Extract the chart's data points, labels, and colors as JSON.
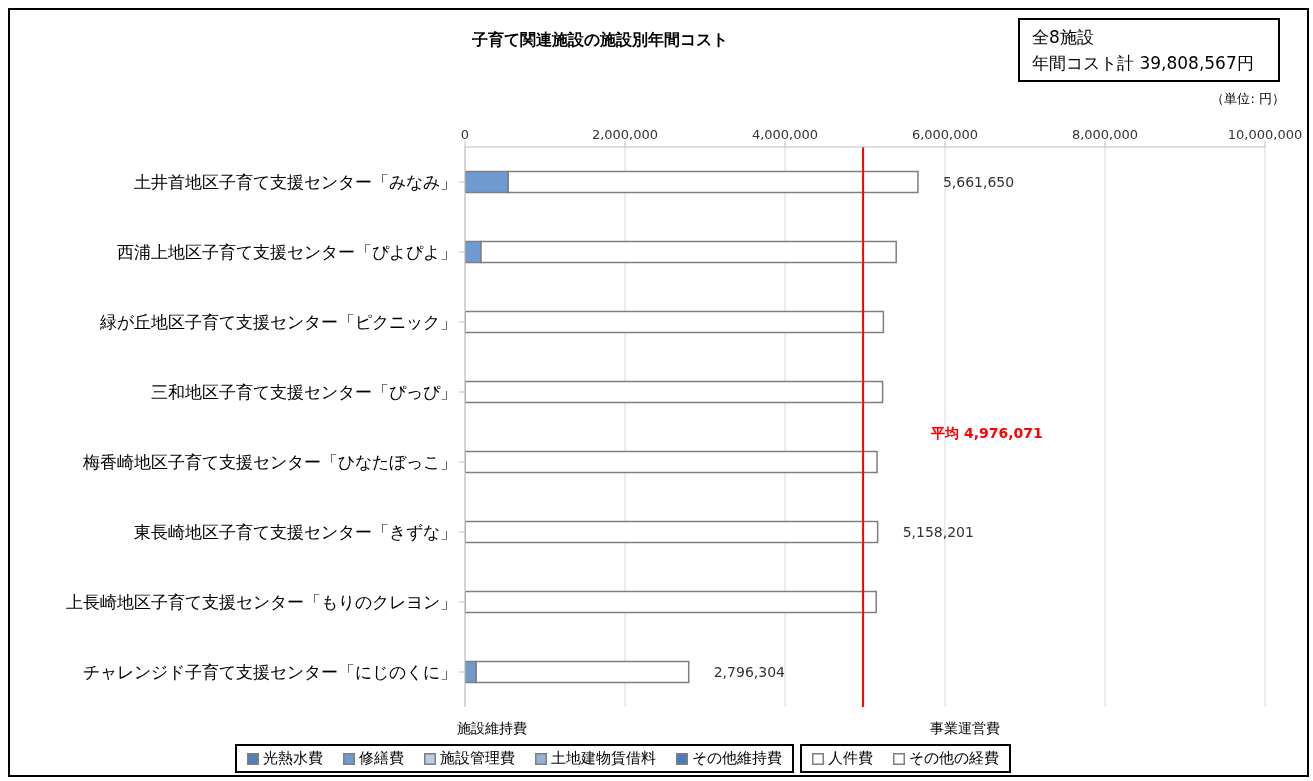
{
  "chart_data": {
    "type": "bar",
    "orientation": "horizontal",
    "stacked": true,
    "title": "子育て関連施設の施設別年間コスト",
    "categories": [
      "土井首地区子育て支援センター「みなみ」",
      "西浦上地区子育て支援センター「ぴよぴよ」",
      "緑が丘地区子育て支援センター「ピクニック」",
      "三和地区子育て支援センター「ぴっぴ」",
      "梅香崎地区子育て支援センター「ひなたぼっこ」",
      "東長崎地区子育て支援センター「きずな」",
      "上長崎地区子育て支援センター「もりのクレヨン」",
      "チャレンジド子育て支援センター「にじのくに」"
    ],
    "series": [
      {
        "name": "光熱水費",
        "color": "#4f81bd",
        "values": [
          null,
          null,
          null,
          null,
          null,
          null,
          null,
          null
        ]
      },
      {
        "name": "修繕費",
        "color": "#6f9bd1",
        "values": [
          540000,
          200000,
          null,
          null,
          null,
          null,
          null,
          140000
        ]
      },
      {
        "name": "施設管理費",
        "color": "#b9cde5",
        "values": [
          null,
          null,
          null,
          null,
          null,
          null,
          null,
          null
        ]
      },
      {
        "name": "土地建物賃借料",
        "color": "#95b3d7",
        "values": [
          null,
          null,
          null,
          null,
          null,
          null,
          null,
          null
        ]
      },
      {
        "name": "その他維持費",
        "color": "#4a7ebb",
        "values": [
          null,
          null,
          null,
          null,
          null,
          null,
          null,
          null
        ]
      },
      {
        "name": "人件費",
        "color": "#ffffff",
        "values": [
          5121650,
          5190000,
          5230000,
          5220000,
          5150000,
          5158201,
          5140000,
          2656304
        ]
      },
      {
        "name": "その他の経費",
        "color": "#ffffff",
        "values": [
          null,
          null,
          null,
          null,
          null,
          null,
          null,
          null
        ]
      }
    ],
    "totals": [
      "5,661,650",
      null,
      null,
      null,
      null,
      "5,158,201",
      null,
      "2,796,304"
    ],
    "xlim": [
      0,
      10000000
    ],
    "xticks": [
      0,
      {
        "value": 2000000,
        "label": "2,000,000"
      },
      {
        "value": 4000000,
        "label": "4,000,000"
      },
      {
        "value": 6000000,
        "label": "6,000,000"
      },
      {
        "value": 8000000,
        "label": "8,000,000"
      },
      {
        "value": 10000000,
        "label": "10,000,000"
      }
    ],
    "grid": "x",
    "legend": "bottom",
    "ref_lines": [
      {
        "axis": "x",
        "value": 4976071,
        "label": "平均  4,976,071",
        "color": "#ff0000"
      }
    ],
    "annotations": [
      "全8施設",
      "年間コスト計  39,808,567円",
      "（単位: 円）",
      "施設維持費",
      "事業運営費"
    ]
  }
}
